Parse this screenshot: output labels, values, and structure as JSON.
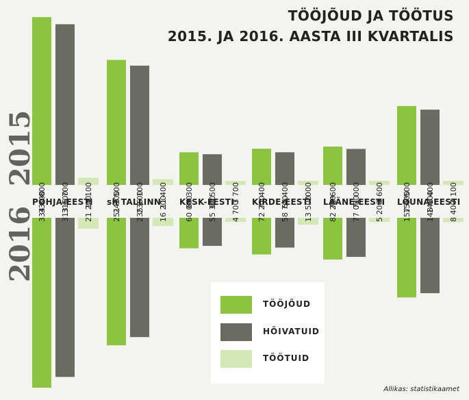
{
  "title_line1": "TÖÖJÕUD JA TÖÖTUS",
  "title_line2": "2015. JA 2016. AASTA III KVARTALIS",
  "year_top": "2015",
  "year_bottom": "2016",
  "source": "Allikas: statistikaamet",
  "colors": {
    "toojoud": "#8bc43f",
    "hoivatuid": "#6b6b62",
    "tootuid": "#d4e8b5"
  },
  "chart_data": {
    "type": "bar",
    "categories": [
      "PÕHJA-EESTI",
      "sh TALLINN",
      "KESK-EESTI",
      "KIRDE-EESTI",
      "LÄÄNE-EESTI",
      "LÕUNA-EESTI"
    ],
    "series": [
      {
        "name": "TÖÖJÕUD",
        "color": "#8bc43f",
        "values_2015": [
          330800,
          246500,
          64300,
          71400,
          75600,
          155500
        ],
        "values_2016": [
          334800,
          251300,
          60000,
          72200,
          82200,
          157000
        ],
        "labels_2015": [
          "330 800",
          "246 500",
          "64 300",
          "71 400",
          "75 600",
          "155 500"
        ],
        "labels_2016": [
          "334 800",
          "251 300",
          "60 000",
          "72 200",
          "82 200",
          "157 000"
        ]
      },
      {
        "name": "HÕIVATUID",
        "color": "#6b6b62",
        "values_2015": [
          316700,
          235100,
          60500,
          64400,
          71000,
          148400
        ],
        "values_2016": [
          313600,
          235100,
          55300,
          58700,
          77000,
          148600
        ],
        "labels_2015": [
          "316 700",
          "235 100",
          "60 500",
          "64 400",
          "71 000",
          "148 400"
        ],
        "labels_2016": [
          "313 600",
          "235 100",
          "55 300",
          "58 700",
          "77 000",
          "148 600"
        ]
      },
      {
        "name": "TÖÖTUID",
        "color": "#d4e8b5",
        "values_2015": [
          14100,
          11400,
          3700,
          7000,
          4600,
          7100
        ],
        "values_2016": [
          21200,
          16200,
          4700,
          13500,
          5200,
          8400
        ],
        "labels_2015": [
          "14 100",
          "11 400",
          "3 700",
          "7000",
          "4 600",
          "7 100"
        ],
        "labels_2016": [
          "21 200",
          "16 200",
          "4 700",
          "13 500",
          "5 200",
          "8 400"
        ]
      }
    ],
    "layout": "mirrored bars: 2015 upward, 2016 downward"
  }
}
